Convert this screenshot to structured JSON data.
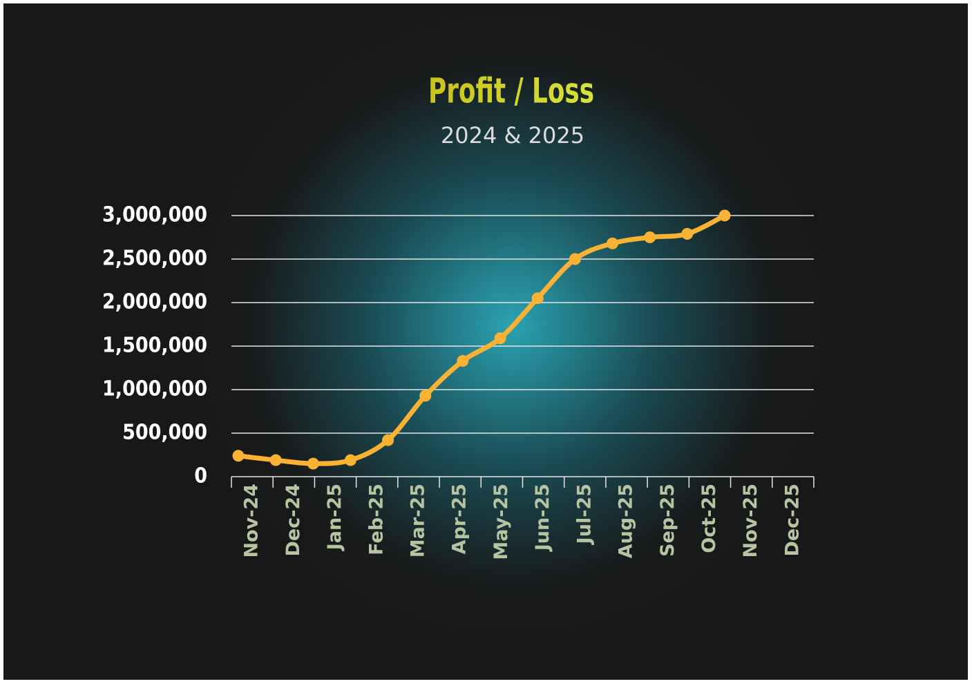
{
  "chart_data": {
    "type": "line",
    "title": "Profit / Loss",
    "subtitle": "2024 & 2025",
    "categories": [
      "Nov-24",
      "Dec-24",
      "Jan-25",
      "Feb-25",
      "Mar-25",
      "Apr-25",
      "May-25",
      "Jun-25",
      "Jul-25",
      "Aug-25",
      "Sep-25",
      "Oct-25",
      "Nov-25",
      "Dec-25"
    ],
    "series": [
      {
        "color": "#f9b233",
        "values": [
          240000,
          190000,
          150000,
          190000,
          420000,
          930000,
          1330000,
          1590000,
          2050000,
          2500000,
          2680000,
          2750000,
          2790000,
          3000000
        ]
      }
    ],
    "ylim": [
      0,
      3000000
    ],
    "yticks": [
      0,
      {
        "value": 500000,
        "label": "500,000"
      },
      {
        "value": 1000000,
        "label": "1,000,000"
      },
      {
        "value": 1500000,
        "label": "1,500,000"
      },
      {
        "value": 2000000,
        "label": "2,000,000"
      },
      {
        "value": 2500000,
        "label": "2,500,000"
      },
      {
        "value": 3000000,
        "label": "3,000,000"
      }
    ],
    "grid": true
  }
}
